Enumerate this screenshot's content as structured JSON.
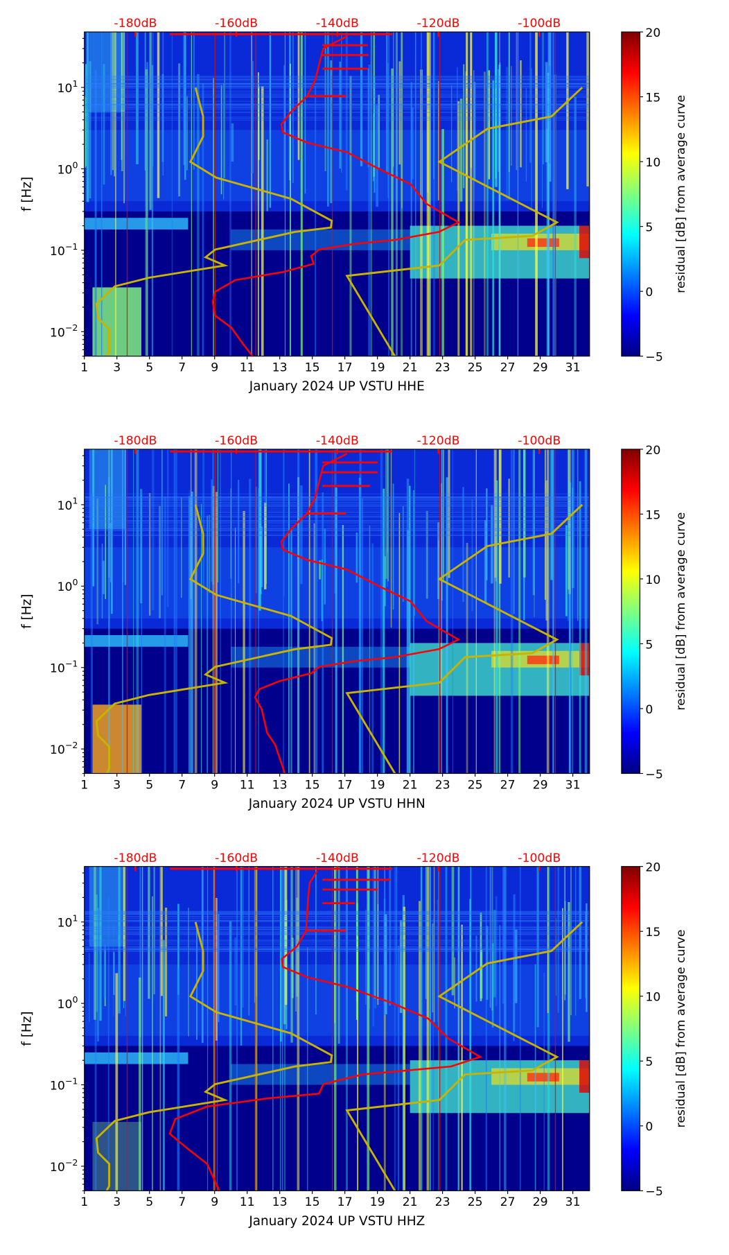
{
  "chart_data": [
    {
      "type": "heatmap",
      "xlabel": "January 2024 UP VSTU  HHE",
      "ylabel": "f [Hz]",
      "x_ticks": [
        "1",
        "3",
        "5",
        "7",
        "9",
        "11",
        "13",
        "15",
        "17",
        "19",
        "21",
        "23",
        "25",
        "27",
        "29",
        "31"
      ],
      "xlim": [
        1,
        32
      ],
      "y_ticks": [
        {
          "base": "10",
          "exp": "1",
          "value": 10
        },
        {
          "base": "10",
          "exp": "0",
          "value": 1
        },
        {
          "base": "10",
          "exp": "−1",
          "value": 0.1
        },
        {
          "base": "10",
          "exp": "−2",
          "value": 0.01
        }
      ],
      "ylim": [
        0.005,
        48
      ],
      "yscale": "log",
      "top_axis": {
        "ticks": [
          "-180dB",
          "-160dB",
          "-140dB",
          "-120dB",
          "-100dB"
        ],
        "values": [
          -180,
          -160,
          -140,
          -120,
          -100
        ],
        "color": "#ff0000"
      },
      "colorbar": {
        "label": "residual [dB] from average curve",
        "ticks": [
          "−5",
          "0",
          "5",
          "10",
          "15",
          "20"
        ],
        "range": [
          -5,
          20
        ],
        "colormap": "jet"
      },
      "red_curve": [
        [
          42.4,
          -138.1
        ],
        [
          30,
          -142.8
        ],
        [
          19.2,
          -143.6
        ],
        [
          12.2,
          -144.4
        ],
        [
          7.8,
          -146.0
        ],
        [
          5.0,
          -149.2
        ],
        [
          3.5,
          -151.1
        ],
        [
          2.8,
          -150.8
        ],
        [
          2.1,
          -146.0
        ],
        [
          1.6,
          -138.1
        ],
        [
          1.0,
          -131.8
        ],
        [
          0.65,
          -125.5
        ],
        [
          0.37,
          -122.3
        ],
        [
          0.22,
          -116.0
        ],
        [
          0.168,
          -119.9
        ],
        [
          0.134,
          -128.6
        ],
        [
          0.12,
          -136.5
        ],
        [
          0.102,
          -143.6
        ],
        [
          0.085,
          -145.2
        ],
        [
          0.068,
          -144.7
        ],
        [
          0.054,
          -150.8
        ],
        [
          0.043,
          -160.2
        ],
        [
          0.031,
          -164.2
        ],
        [
          0.023,
          -164.7
        ],
        [
          0.0157,
          -164.2
        ],
        [
          0.0112,
          -161.0
        ],
        [
          0.0071,
          -158.7
        ],
        [
          0.005,
          -156.8
        ]
      ],
      "red_spikes": [
        [
          45,
          -173.2,
          -129.1
        ],
        [
          33,
          -143,
          -134
        ],
        [
          25,
          -143,
          -133.8
        ],
        [
          17,
          -143,
          -134
        ],
        [
          7.8,
          -146,
          -138.3
        ]
      ]
    },
    {
      "type": "heatmap",
      "xlabel": "January 2024 UP VSTU  HHN",
      "ylabel": "f [Hz]",
      "x_ticks": [
        "1",
        "3",
        "5",
        "7",
        "9",
        "11",
        "13",
        "15",
        "17",
        "19",
        "21",
        "23",
        "25",
        "27",
        "29",
        "31"
      ],
      "xlim": [
        1,
        32
      ],
      "y_ticks": [
        {
          "base": "10",
          "exp": "1",
          "value": 10
        },
        {
          "base": "10",
          "exp": "0",
          "value": 1
        },
        {
          "base": "10",
          "exp": "−1",
          "value": 0.1
        },
        {
          "base": "10",
          "exp": "−2",
          "value": 0.01
        }
      ],
      "ylim": [
        0.005,
        48
      ],
      "yscale": "log",
      "top_axis": {
        "ticks": [
          "-180dB",
          "-160dB",
          "-140dB",
          "-120dB",
          "-100dB"
        ],
        "values": [
          -180,
          -160,
          -140,
          -120,
          -100
        ],
        "color": "#ff0000"
      },
      "colorbar": {
        "label": "residual [dB] from average curve",
        "ticks": [
          "−5",
          "0",
          "5",
          "10",
          "15",
          "20"
        ],
        "range": [
          -5,
          20
        ],
        "colormap": "jet"
      },
      "red_curve": [
        [
          42.4,
          -138.1
        ],
        [
          30,
          -142.8
        ],
        [
          19.2,
          -143.6
        ],
        [
          12.2,
          -144.4
        ],
        [
          7.8,
          -146.0
        ],
        [
          5.0,
          -149.2
        ],
        [
          3.5,
          -151.1
        ],
        [
          2.8,
          -150.8
        ],
        [
          2.1,
          -146.0
        ],
        [
          1.6,
          -138.1
        ],
        [
          1.0,
          -131.8
        ],
        [
          0.65,
          -125.5
        ],
        [
          0.37,
          -122.3
        ],
        [
          0.22,
          -116.0
        ],
        [
          0.168,
          -119.9
        ],
        [
          0.134,
          -128.6
        ],
        [
          0.12,
          -136.5
        ],
        [
          0.102,
          -143.6
        ],
        [
          0.085,
          -145.2
        ],
        [
          0.068,
          -151.5
        ],
        [
          0.054,
          -155.5
        ],
        [
          0.043,
          -156.3
        ],
        [
          0.031,
          -155.0
        ],
        [
          0.0157,
          -153.9
        ],
        [
          0.0112,
          -152.3
        ],
        [
          0.005,
          -150.4
        ]
      ],
      "red_spikes": [
        [
          45,
          -173.2,
          -129.1
        ],
        [
          33,
          -143,
          -132
        ],
        [
          25,
          -143,
          -132
        ],
        [
          17,
          -143,
          -133.5
        ],
        [
          7.8,
          -146,
          -138.3
        ]
      ]
    },
    {
      "type": "heatmap",
      "xlabel": "January 2024 UP VSTU  HHZ",
      "ylabel": "f [Hz]",
      "x_ticks": [
        "1",
        "3",
        "5",
        "7",
        "9",
        "11",
        "13",
        "15",
        "17",
        "19",
        "21",
        "23",
        "25",
        "27",
        "29",
        "31"
      ],
      "xlim": [
        1,
        32
      ],
      "y_ticks": [
        {
          "base": "10",
          "exp": "1",
          "value": 10
        },
        {
          "base": "10",
          "exp": "0",
          "value": 1
        },
        {
          "base": "10",
          "exp": "−1",
          "value": 0.1
        },
        {
          "base": "10",
          "exp": "−2",
          "value": 0.01
        }
      ],
      "ylim": [
        0.005,
        48
      ],
      "yscale": "log",
      "top_axis": {
        "ticks": [
          "-180dB",
          "-160dB",
          "-140dB",
          "-120dB",
          "-100dB"
        ],
        "values": [
          -180,
          -160,
          -140,
          -120,
          -100
        ],
        "color": "#ff0000"
      },
      "colorbar": {
        "label": "residual [dB] from average curve",
        "ticks": [
          "−5",
          "0",
          "5",
          "10",
          "15",
          "20"
        ],
        "range": [
          -5,
          20
        ],
        "colormap": "jet"
      },
      "red_curve": [
        [
          42.4,
          -144.0
        ],
        [
          30,
          -145.5
        ],
        [
          19.2,
          -145.8
        ],
        [
          12.2,
          -146.0
        ],
        [
          7.8,
          -146.2
        ],
        [
          5.0,
          -148.0
        ],
        [
          3.5,
          -151.0
        ],
        [
          2.8,
          -150.8
        ],
        [
          2.1,
          -146.0
        ],
        [
          1.6,
          -138.1
        ],
        [
          1.0,
          -129.0
        ],
        [
          0.65,
          -122.0
        ],
        [
          0.37,
          -118.0
        ],
        [
          0.22,
          -111.7
        ],
        [
          0.168,
          -117.5
        ],
        [
          0.134,
          -135.0
        ],
        [
          0.102,
          -142.8
        ],
        [
          0.078,
          -143.6
        ],
        [
          0.068,
          -153.9
        ],
        [
          0.054,
          -165.8
        ],
        [
          0.038,
          -172.1
        ],
        [
          0.025,
          -173.2
        ],
        [
          0.0165,
          -169.7
        ],
        [
          0.0107,
          -165.8
        ],
        [
          0.005,
          -163.4
        ]
      ],
      "red_spikes": [
        [
          45,
          -173.2,
          -129.1
        ],
        [
          33,
          -143,
          -129.5
        ],
        [
          25,
          -143,
          -132
        ],
        [
          17,
          -143,
          -136.5
        ],
        [
          7.8,
          -146,
          -138.3
        ]
      ]
    }
  ],
  "noise_models": {
    "color": "#c8b400",
    "low": [
      [
        10,
        -168.1
      ],
      [
        4.4,
        -166.6
      ],
      [
        2.5,
        -166.6
      ],
      [
        1.22,
        -169.1
      ],
      [
        0.78,
        -164.0
      ],
      [
        0.43,
        -149.2
      ],
      [
        0.23,
        -141.1
      ],
      [
        0.19,
        -141.3
      ],
      [
        0.168,
        -148.4
      ],
      [
        0.102,
        -164.2
      ],
      [
        0.082,
        -166.1
      ],
      [
        0.065,
        -162.3
      ],
      [
        0.046,
        -177.3
      ],
      [
        0.036,
        -184.1
      ],
      [
        0.022,
        -187.7
      ],
      [
        0.0147,
        -187.4
      ],
      [
        0.0107,
        -185.2
      ],
      [
        0.0057,
        -185.2
      ],
      [
        0.005,
        -185.7
      ]
    ],
    "high": [
      [
        10,
        -91.5
      ],
      [
        4.4,
        -97.6
      ],
      [
        3.1,
        -110.3
      ],
      [
        1.22,
        -119.8
      ],
      [
        0.22,
        -96.5
      ],
      [
        0.15,
        -101.4
      ],
      [
        0.134,
        -114.7
      ],
      [
        0.065,
        -119.8
      ],
      [
        0.0485,
        -138.1
      ],
      [
        0.005,
        -128.6
      ]
    ]
  }
}
